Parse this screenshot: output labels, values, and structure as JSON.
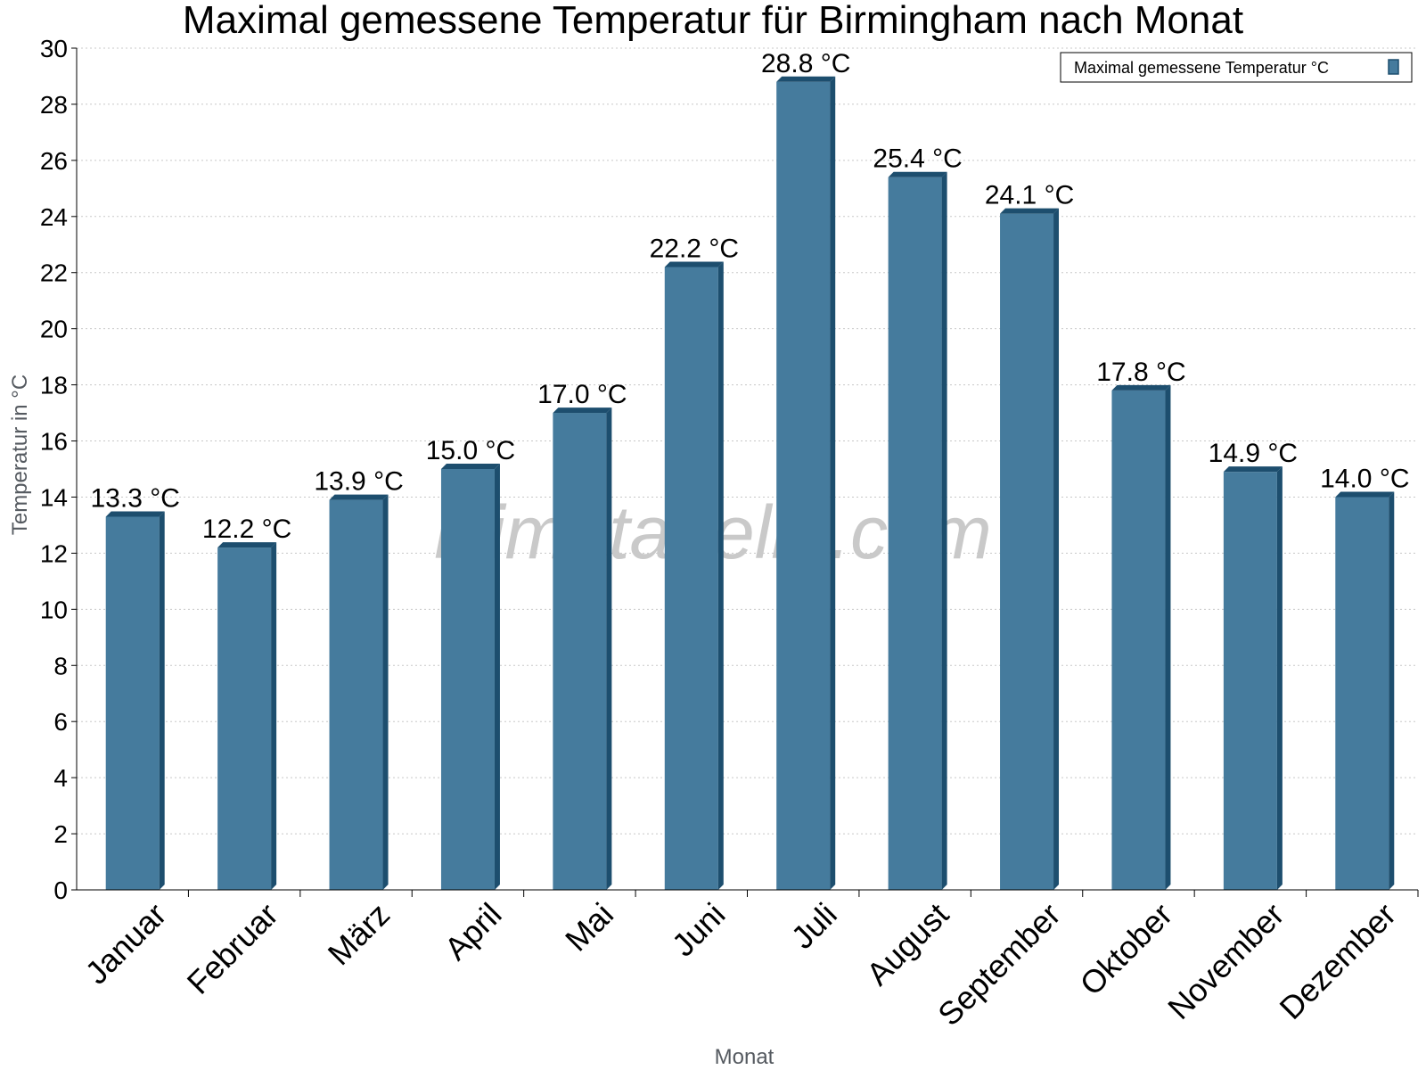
{
  "chart_data": {
    "type": "bar",
    "title": "Maximal gemessene Temperatur für Birmingham nach Monat",
    "xlabel": "Monat",
    "ylabel": "Temperatur in °C",
    "ylim": [
      0,
      30
    ],
    "ytick_step": 2,
    "grid": true,
    "legend_position": "top-right",
    "watermark": "klimatabelle.com",
    "categories": [
      "Januar",
      "Februar",
      "März",
      "April",
      "Mai",
      "Juni",
      "Juli",
      "August",
      "September",
      "Oktober",
      "November",
      "Dezember"
    ],
    "series": [
      {
        "name": "Maximal gemessene Temperatur °C",
        "values": [
          13.3,
          12.2,
          13.9,
          15.0,
          17.0,
          22.2,
          28.8,
          25.4,
          24.1,
          17.8,
          14.9,
          14.0
        ],
        "labels": [
          "13.3 °C",
          "12.2 °C",
          "13.9 °C",
          "15.0 °C",
          "17.0 °C",
          "22.2 °C",
          "28.8 °C",
          "25.4 °C",
          "24.1 °C",
          "17.8 °C",
          "14.9 °C",
          "14.0 °C"
        ],
        "color": "#457b9d",
        "edge_color": "#1d4e6e"
      }
    ]
  }
}
